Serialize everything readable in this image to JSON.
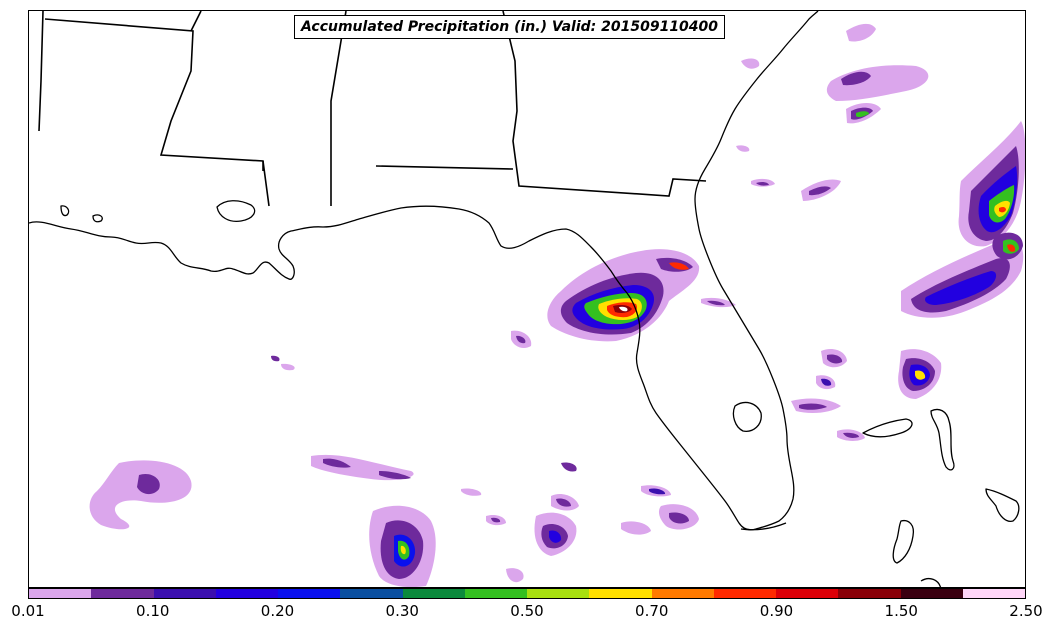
{
  "title": "Accumulated Precipitation (in.) Valid: 201509110400",
  "map": {
    "region": "Southeastern United States and Gulf of Mexico",
    "ocean_color": "#ffffff",
    "coastline_color": "#000000"
  },
  "colorbar": {
    "colors": [
      "#dba6ec",
      "#6e2a9c",
      "#3b0faf",
      "#2200e0",
      "#0a10ee",
      "#0a4fa0",
      "#0b8a3c",
      "#34c020",
      "#a8e010",
      "#ffe000",
      "#ff7a00",
      "#ff2a00",
      "#dd0008",
      "#8a0008",
      "#3a0010",
      "#ffd6f8"
    ],
    "tick_labels": [
      "0.01",
      "0.10",
      "0.20",
      "0.30",
      "0.50",
      "0.70",
      "0.90",
      "1.50",
      "2.50"
    ]
  }
}
